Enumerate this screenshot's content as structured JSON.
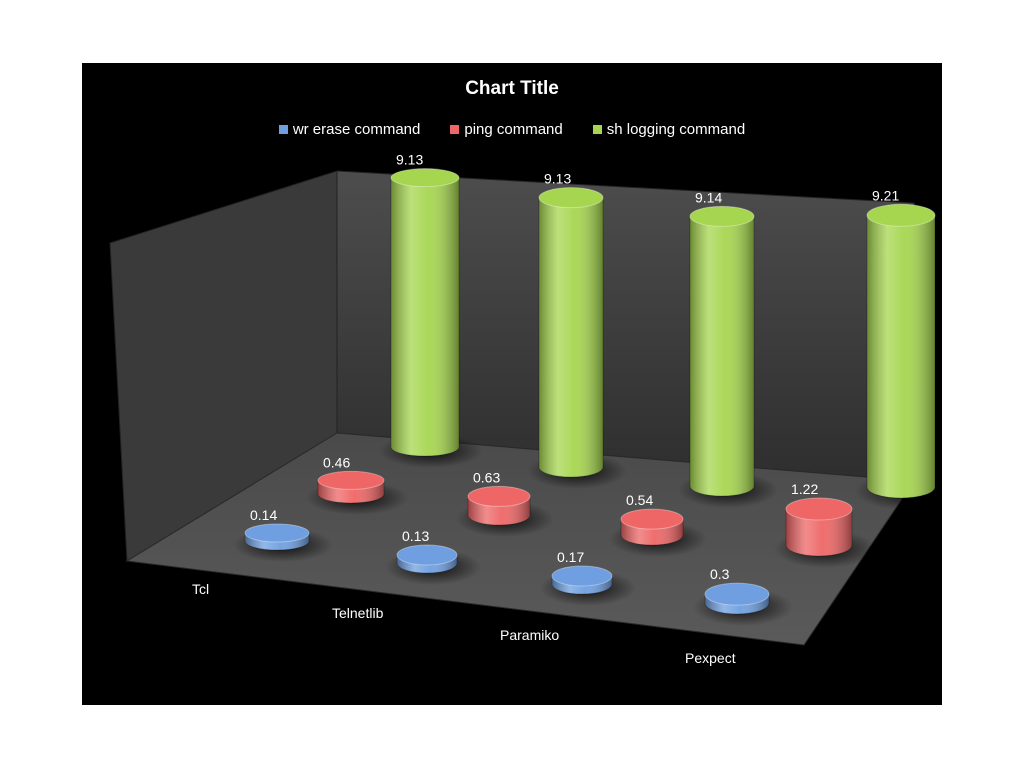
{
  "chart_data": {
    "type": "bar",
    "title": "Chart Title",
    "categories": [
      "Tcl",
      "Telnetlib",
      "Paramiko",
      "Pexpect"
    ],
    "series": [
      {
        "name": "wr erase command",
        "values": [
          0.14,
          0.13,
          0.17,
          0.3
        ],
        "color": "#6f9fe0"
      },
      {
        "name": "ping command",
        "values": [
          0.46,
          0.63,
          0.54,
          1.22
        ],
        "color": "#ee6666"
      },
      {
        "name": "sh logging command",
        "values": [
          9.13,
          9.13,
          9.14,
          9.21
        ],
        "color": "#a6d64f"
      }
    ],
    "xlabel": "",
    "ylabel": "",
    "ylim": [
      0,
      10
    ],
    "legend_position": "top",
    "grid": false,
    "style": "3d-cylinder",
    "background": "#000000"
  }
}
